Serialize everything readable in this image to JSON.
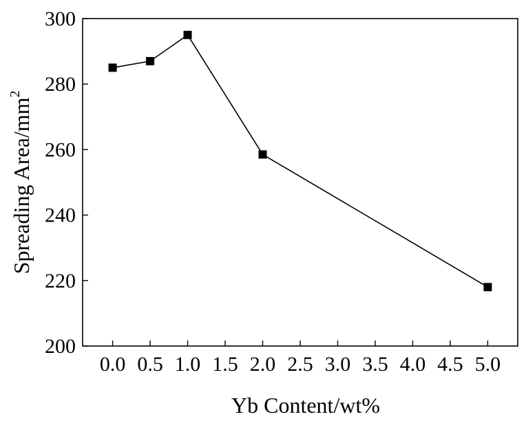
{
  "chart_data": {
    "type": "line",
    "xlabel": "Yb Content/wt%",
    "ylabel": "Spreading Area/mm",
    "ylabel_superscript": "2",
    "xlim": [
      -0.4,
      5.4
    ],
    "ylim": [
      200,
      300
    ],
    "x_ticks": [
      0.0,
      0.5,
      1.0,
      1.5,
      2.0,
      2.5,
      3.0,
      3.5,
      4.0,
      4.5,
      5.0
    ],
    "x_tick_labels": [
      "0.0",
      "0.5",
      "1.0",
      "1.5",
      "2.0",
      "2.5",
      "3.0",
      "3.5",
      "4.0",
      "4.5",
      "5.0"
    ],
    "y_ticks": [
      200,
      220,
      240,
      260,
      280,
      300
    ],
    "y_tick_labels": [
      "200",
      "220",
      "240",
      "260",
      "280",
      "300"
    ],
    "grid": false,
    "marker": "square",
    "color": "#000000",
    "series": [
      {
        "x": [
          0.0,
          0.5,
          1.0,
          2.0,
          5.0
        ],
        "y": [
          285,
          287,
          295,
          258.5,
          218
        ]
      }
    ]
  }
}
